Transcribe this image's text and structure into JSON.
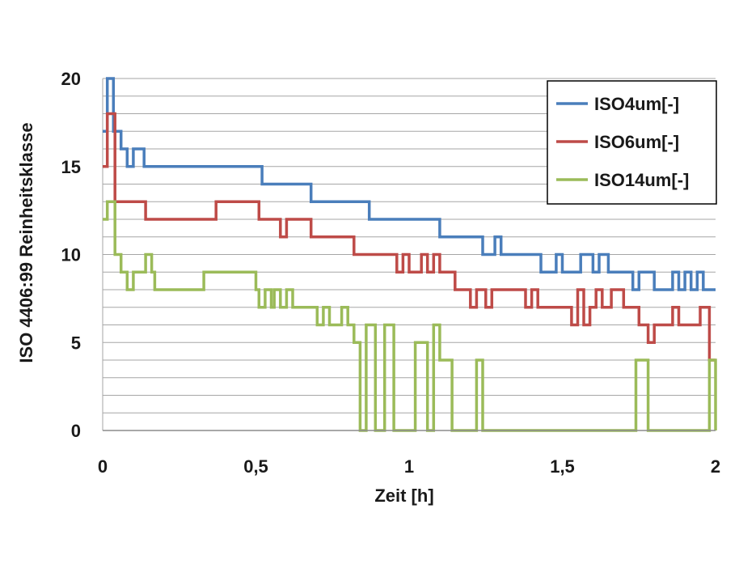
{
  "chart_data": {
    "type": "line",
    "title": "",
    "xlabel": "Zeit [h]",
    "ylabel": "ISO 4406:99 Reinheitsklasse",
    "xlim": [
      0,
      2
    ],
    "ylim": [
      0,
      20
    ],
    "x_ticks": [
      0,
      0.5,
      1,
      1.5,
      2
    ],
    "x_tick_labels": [
      "0",
      "0,5",
      "1",
      "1,5",
      "2"
    ],
    "y_ticks": [
      0,
      5,
      10,
      15,
      20
    ],
    "y_tick_labels": [
      "0",
      "5",
      "10",
      "15",
      "20"
    ],
    "grid": true,
    "minor_grid_step": 1,
    "step": true,
    "legend_position": "top-right",
    "series": [
      {
        "name": "ISO4um[-]",
        "color": "#4a7ebb",
        "points": [
          [
            0,
            17
          ],
          [
            0.015,
            17
          ],
          [
            0.015,
            20
          ],
          [
            0.035,
            20
          ],
          [
            0.035,
            17
          ],
          [
            0.06,
            17
          ],
          [
            0.06,
            16
          ],
          [
            0.08,
            16
          ],
          [
            0.08,
            15
          ],
          [
            0.1,
            15
          ],
          [
            0.1,
            16
          ],
          [
            0.135,
            16
          ],
          [
            0.135,
            15
          ],
          [
            0.52,
            15
          ],
          [
            0.52,
            14
          ],
          [
            0.68,
            14
          ],
          [
            0.68,
            13
          ],
          [
            0.87,
            13
          ],
          [
            0.87,
            12
          ],
          [
            1.1,
            12
          ],
          [
            1.1,
            11
          ],
          [
            1.24,
            11
          ],
          [
            1.24,
            10
          ],
          [
            1.28,
            10
          ],
          [
            1.28,
            11
          ],
          [
            1.3,
            11
          ],
          [
            1.3,
            10
          ],
          [
            1.43,
            10
          ],
          [
            1.43,
            9
          ],
          [
            1.48,
            9
          ],
          [
            1.48,
            10
          ],
          [
            1.5,
            10
          ],
          [
            1.5,
            9
          ],
          [
            1.56,
            9
          ],
          [
            1.56,
            10
          ],
          [
            1.6,
            10
          ],
          [
            1.6,
            9
          ],
          [
            1.62,
            9
          ],
          [
            1.62,
            10
          ],
          [
            1.65,
            10
          ],
          [
            1.65,
            9
          ],
          [
            1.73,
            9
          ],
          [
            1.73,
            8
          ],
          [
            1.75,
            8
          ],
          [
            1.75,
            9
          ],
          [
            1.8,
            9
          ],
          [
            1.8,
            8
          ],
          [
            1.86,
            8
          ],
          [
            1.86,
            9
          ],
          [
            1.88,
            9
          ],
          [
            1.88,
            8
          ],
          [
            1.9,
            8
          ],
          [
            1.9,
            9
          ],
          [
            1.92,
            9
          ],
          [
            1.92,
            8
          ],
          [
            1.94,
            8
          ],
          [
            1.94,
            9
          ],
          [
            1.96,
            9
          ],
          [
            1.96,
            8
          ],
          [
            2,
            8
          ]
        ]
      },
      {
        "name": "ISO6um[-]",
        "color": "#be4b48",
        "points": [
          [
            0,
            15
          ],
          [
            0.015,
            15
          ],
          [
            0.015,
            18
          ],
          [
            0.04,
            18
          ],
          [
            0.04,
            13
          ],
          [
            0.14,
            13
          ],
          [
            0.14,
            12
          ],
          [
            0.37,
            12
          ],
          [
            0.37,
            13
          ],
          [
            0.51,
            13
          ],
          [
            0.51,
            12
          ],
          [
            0.58,
            12
          ],
          [
            0.58,
            11
          ],
          [
            0.6,
            11
          ],
          [
            0.6,
            12
          ],
          [
            0.68,
            12
          ],
          [
            0.68,
            11
          ],
          [
            0.82,
            11
          ],
          [
            0.82,
            10
          ],
          [
            0.96,
            10
          ],
          [
            0.96,
            9
          ],
          [
            0.98,
            9
          ],
          [
            0.98,
            10
          ],
          [
            1.0,
            10
          ],
          [
            1.0,
            9
          ],
          [
            1.04,
            9
          ],
          [
            1.04,
            10
          ],
          [
            1.06,
            10
          ],
          [
            1.06,
            9
          ],
          [
            1.08,
            9
          ],
          [
            1.08,
            10
          ],
          [
            1.1,
            10
          ],
          [
            1.1,
            9
          ],
          [
            1.15,
            9
          ],
          [
            1.15,
            8
          ],
          [
            1.2,
            8
          ],
          [
            1.2,
            7
          ],
          [
            1.22,
            7
          ],
          [
            1.22,
            8
          ],
          [
            1.25,
            8
          ],
          [
            1.25,
            7
          ],
          [
            1.27,
            7
          ],
          [
            1.27,
            8
          ],
          [
            1.38,
            8
          ],
          [
            1.38,
            7
          ],
          [
            1.4,
            7
          ],
          [
            1.4,
            8
          ],
          [
            1.42,
            8
          ],
          [
            1.42,
            7
          ],
          [
            1.53,
            7
          ],
          [
            1.53,
            6
          ],
          [
            1.55,
            6
          ],
          [
            1.55,
            8
          ],
          [
            1.57,
            8
          ],
          [
            1.57,
            6
          ],
          [
            1.59,
            6
          ],
          [
            1.59,
            7
          ],
          [
            1.61,
            7
          ],
          [
            1.61,
            8
          ],
          [
            1.63,
            8
          ],
          [
            1.63,
            7
          ],
          [
            1.66,
            7
          ],
          [
            1.66,
            8
          ],
          [
            1.7,
            8
          ],
          [
            1.7,
            7
          ],
          [
            1.75,
            7
          ],
          [
            1.75,
            6
          ],
          [
            1.78,
            6
          ],
          [
            1.78,
            5
          ],
          [
            1.8,
            5
          ],
          [
            1.8,
            6
          ],
          [
            1.86,
            6
          ],
          [
            1.86,
            7
          ],
          [
            1.88,
            7
          ],
          [
            1.88,
            6
          ],
          [
            1.95,
            6
          ],
          [
            1.95,
            7
          ],
          [
            1.98,
            7
          ],
          [
            1.98,
            4
          ],
          [
            2,
            4
          ]
        ]
      },
      {
        "name": "ISO14um[-]",
        "color": "#9bbb59",
        "points": [
          [
            0,
            12
          ],
          [
            0.015,
            12
          ],
          [
            0.015,
            13
          ],
          [
            0.04,
            13
          ],
          [
            0.04,
            10
          ],
          [
            0.06,
            10
          ],
          [
            0.06,
            9
          ],
          [
            0.08,
            9
          ],
          [
            0.08,
            8
          ],
          [
            0.1,
            8
          ],
          [
            0.1,
            9
          ],
          [
            0.14,
            9
          ],
          [
            0.14,
            10
          ],
          [
            0.16,
            10
          ],
          [
            0.16,
            9
          ],
          [
            0.17,
            9
          ],
          [
            0.17,
            8
          ],
          [
            0.33,
            8
          ],
          [
            0.33,
            9
          ],
          [
            0.5,
            9
          ],
          [
            0.5,
            8
          ],
          [
            0.51,
            8
          ],
          [
            0.51,
            7
          ],
          [
            0.53,
            7
          ],
          [
            0.53,
            8
          ],
          [
            0.55,
            8
          ],
          [
            0.55,
            7
          ],
          [
            0.56,
            7
          ],
          [
            0.56,
            8
          ],
          [
            0.58,
            8
          ],
          [
            0.58,
            7
          ],
          [
            0.6,
            7
          ],
          [
            0.6,
            8
          ],
          [
            0.62,
            8
          ],
          [
            0.62,
            7
          ],
          [
            0.7,
            7
          ],
          [
            0.7,
            6
          ],
          [
            0.72,
            6
          ],
          [
            0.72,
            7
          ],
          [
            0.74,
            7
          ],
          [
            0.74,
            6
          ],
          [
            0.78,
            6
          ],
          [
            0.78,
            7
          ],
          [
            0.8,
            7
          ],
          [
            0.8,
            6
          ],
          [
            0.82,
            6
          ],
          [
            0.82,
            5
          ],
          [
            0.84,
            5
          ],
          [
            0.84,
            0
          ],
          [
            0.86,
            0
          ],
          [
            0.86,
            6
          ],
          [
            0.89,
            6
          ],
          [
            0.89,
            0
          ],
          [
            0.92,
            0
          ],
          [
            0.92,
            6
          ],
          [
            0.95,
            6
          ],
          [
            0.95,
            0
          ],
          [
            1.02,
            0
          ],
          [
            1.02,
            5
          ],
          [
            1.06,
            5
          ],
          [
            1.06,
            0
          ],
          [
            1.08,
            0
          ],
          [
            1.08,
            6
          ],
          [
            1.1,
            6
          ],
          [
            1.1,
            4
          ],
          [
            1.14,
            4
          ],
          [
            1.14,
            0
          ],
          [
            1.22,
            0
          ],
          [
            1.22,
            4
          ],
          [
            1.24,
            4
          ],
          [
            1.24,
            0
          ],
          [
            1.74,
            0
          ],
          [
            1.74,
            4
          ],
          [
            1.78,
            4
          ],
          [
            1.78,
            0
          ],
          [
            1.98,
            0
          ],
          [
            1.98,
            4
          ],
          [
            2,
            4
          ],
          [
            2,
            0
          ]
        ]
      }
    ]
  }
}
